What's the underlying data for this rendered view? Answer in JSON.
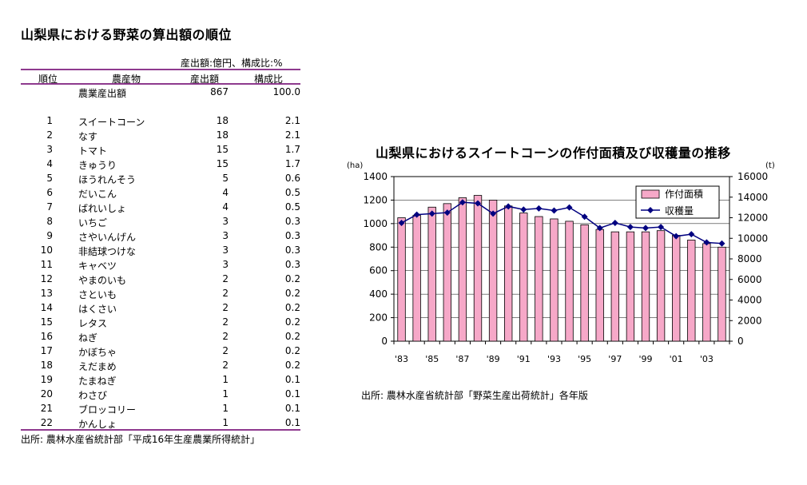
{
  "left": {
    "title": "山梨県における野菜の算出額の順位",
    "unit_note": "産出額:億円、構成比:%",
    "headers": {
      "rank": "順位",
      "crop": "農産物",
      "value": "産出額",
      "ratio": "構成比"
    },
    "total": {
      "name": "農業産出額",
      "value": "867",
      "ratio": "100.0"
    },
    "rows": [
      {
        "rank": "1",
        "name": "スイートコーン",
        "value": "18",
        "ratio": "2.1"
      },
      {
        "rank": "2",
        "name": "なす",
        "value": "18",
        "ratio": "2.1"
      },
      {
        "rank": "3",
        "name": "トマト",
        "value": "15",
        "ratio": "1.7"
      },
      {
        "rank": "4",
        "name": "きゅうり",
        "value": "15",
        "ratio": "1.7"
      },
      {
        "rank": "5",
        "name": "ほうれんそう",
        "value": "5",
        "ratio": "0.6"
      },
      {
        "rank": "6",
        "name": "だいこん",
        "value": "4",
        "ratio": "0.5"
      },
      {
        "rank": "7",
        "name": "ばれいしょ",
        "value": "4",
        "ratio": "0.5"
      },
      {
        "rank": "8",
        "name": "いちご",
        "value": "3",
        "ratio": "0.3"
      },
      {
        "rank": "9",
        "name": "さやいんげん",
        "value": "3",
        "ratio": "0.3"
      },
      {
        "rank": "10",
        "name": "非結球つけな",
        "value": "3",
        "ratio": "0.3"
      },
      {
        "rank": "11",
        "name": "キャベツ",
        "value": "3",
        "ratio": "0.3"
      },
      {
        "rank": "12",
        "name": "やまのいも",
        "value": "2",
        "ratio": "0.2"
      },
      {
        "rank": "13",
        "name": "さといも",
        "value": "2",
        "ratio": "0.2"
      },
      {
        "rank": "14",
        "name": "はくさい",
        "value": "2",
        "ratio": "0.2"
      },
      {
        "rank": "15",
        "name": "レタス",
        "value": "2",
        "ratio": "0.2"
      },
      {
        "rank": "16",
        "name": "ねぎ",
        "value": "2",
        "ratio": "0.2"
      },
      {
        "rank": "17",
        "name": "かぼちゃ",
        "value": "2",
        "ratio": "0.2"
      },
      {
        "rank": "18",
        "name": "えだまめ",
        "value": "2",
        "ratio": "0.2"
      },
      {
        "rank": "19",
        "name": "たまねぎ",
        "value": "1",
        "ratio": "0.1"
      },
      {
        "rank": "20",
        "name": "わさび",
        "value": "1",
        "ratio": "0.1"
      },
      {
        "rank": "21",
        "name": "ブロッコリー",
        "value": "1",
        "ratio": "0.1"
      },
      {
        "rank": "22",
        "name": "かんしょ",
        "value": "1",
        "ratio": "0.1"
      }
    ],
    "source": "出所: 農林水産省統計部「平成16年生産農業所得統計」"
  },
  "chart_data": {
    "type": "bar",
    "title": "山梨県におけるスイートコーンの作付面積及び収穫量の推移",
    "y_left_unit": "(ha)",
    "y_right_unit": "(t)",
    "ylim_left": [
      0,
      1400
    ],
    "ylim_right": [
      0,
      16000
    ],
    "yticks_left": [
      0,
      200,
      400,
      600,
      800,
      1000,
      1200,
      1400
    ],
    "yticks_right": [
      0,
      2000,
      4000,
      6000,
      8000,
      10000,
      12000,
      14000,
      16000
    ],
    "categories": [
      "'83",
      "'84",
      "'85",
      "'86",
      "'87",
      "'88",
      "'89",
      "'90",
      "'91",
      "'92",
      "'93",
      "'94",
      "'95",
      "'96",
      "'97",
      "'98",
      "'99",
      "'00",
      "'01",
      "'02",
      "'03",
      "'04"
    ],
    "xtick_labels": [
      "'83",
      "'85",
      "'87",
      "'89",
      "'91",
      "'93",
      "'95",
      "'97",
      "'99",
      "'01",
      "'03"
    ],
    "series": [
      {
        "name": "作付面積",
        "type": "bar",
        "axis": "left",
        "color": "#f6a8c8",
        "values": [
          1050,
          1070,
          1140,
          1170,
          1220,
          1240,
          1200,
          1150,
          1090,
          1060,
          1040,
          1020,
          990,
          950,
          930,
          930,
          930,
          940,
          900,
          860,
          830,
          800
        ]
      },
      {
        "name": "収穫量",
        "type": "line",
        "axis": "right",
        "color": "#000080",
        "values": [
          11500,
          12300,
          12400,
          12500,
          13500,
          13400,
          12400,
          13100,
          12800,
          12900,
          12700,
          13000,
          12100,
          11000,
          11500,
          11100,
          11000,
          11100,
          10200,
          10400,
          9600,
          9500
        ]
      }
    ],
    "legend_position": "top-right",
    "source": "出所: 農林水産省統計部「野菜生産出荷統計」各年版"
  }
}
